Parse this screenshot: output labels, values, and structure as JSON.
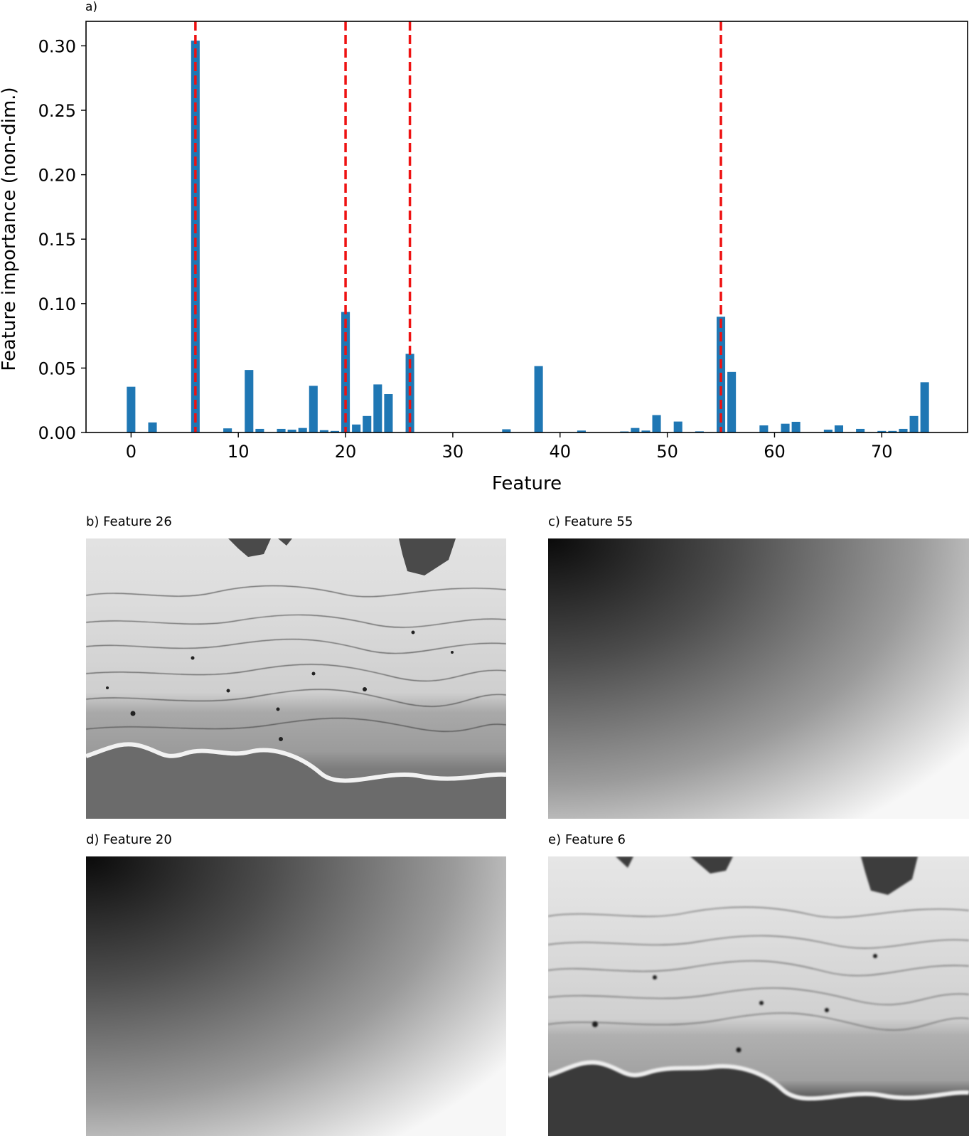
{
  "chart_data": {
    "type": "bar",
    "panel_label": "a)",
    "title": "",
    "xlabel": "Feature",
    "ylabel": "Feature importance (non-dim.)",
    "xlim": [
      -4.2,
      78
    ],
    "ylim": [
      0,
      0.319
    ],
    "xticks": [
      0,
      10,
      20,
      30,
      40,
      50,
      60,
      70
    ],
    "yticks": [
      0.0,
      0.05,
      0.1,
      0.15,
      0.2,
      0.25,
      0.3
    ],
    "bar_color": "#1f77b4",
    "grid": false,
    "x": [
      0,
      2,
      6,
      9,
      11,
      12,
      14,
      15,
      16,
      17,
      18,
      19,
      20,
      21,
      22,
      23,
      24,
      26,
      35,
      38,
      42,
      46,
      47,
      48,
      49,
      51,
      53,
      55,
      56,
      59,
      61,
      62,
      65,
      66,
      68,
      70,
      71,
      72,
      73,
      74
    ],
    "values": [
      0.0355,
      0.0078,
      0.304,
      0.0032,
      0.0485,
      0.0028,
      0.0028,
      0.0022,
      0.0035,
      0.0362,
      0.0018,
      0.0012,
      0.0935,
      0.0062,
      0.0128,
      0.0373,
      0.0298,
      0.061,
      0.0025,
      0.0515,
      0.0015,
      0.0008,
      0.0035,
      0.0015,
      0.0135,
      0.0085,
      0.0009,
      0.0898,
      0.047,
      0.0055,
      0.0068,
      0.0083,
      0.0022,
      0.0055,
      0.0028,
      0.0012,
      0.0012,
      0.0028,
      0.0128,
      0.039
    ],
    "highlight_lines": {
      "x": [
        6,
        20,
        26,
        55
      ],
      "color": "#ee1111",
      "style": "dashed"
    }
  },
  "panels": [
    {
      "label": "b) Feature 26",
      "kind": "beach"
    },
    {
      "label": "c) Feature 55",
      "kind": "gradient"
    },
    {
      "label": "d) Feature 20",
      "kind": "gradient"
    },
    {
      "label": "e) Feature 6",
      "kind": "beach-blur"
    }
  ]
}
